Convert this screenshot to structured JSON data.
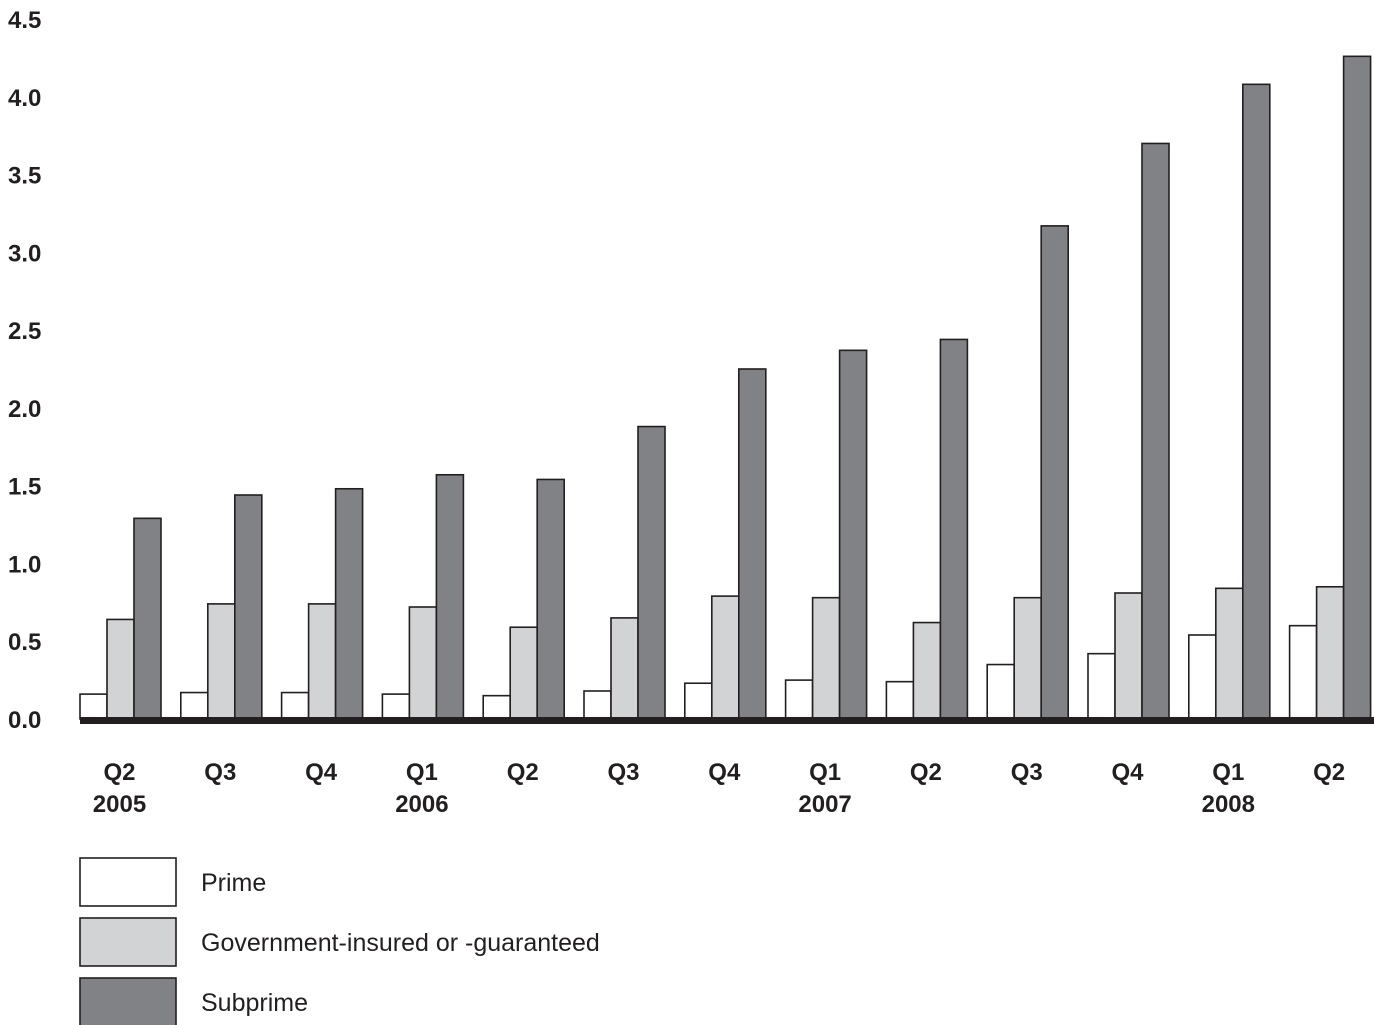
{
  "chart_data": {
    "type": "bar",
    "title": "",
    "xlabel": "",
    "ylabel": "",
    "ylim": [
      0,
      4.5
    ],
    "yticks": [
      "0.0",
      "0.5",
      "1.0",
      "1.5",
      "2.0",
      "2.5",
      "3.0",
      "3.5",
      "4.0",
      "4.5"
    ],
    "grid": false,
    "legend_position": "bottom-left",
    "categories": [
      {
        "quarter": "Q2",
        "year": "2005"
      },
      {
        "quarter": "Q3",
        "year": ""
      },
      {
        "quarter": "Q4",
        "year": ""
      },
      {
        "quarter": "Q1",
        "year": "2006"
      },
      {
        "quarter": "Q2",
        "year": ""
      },
      {
        "quarter": "Q3",
        "year": ""
      },
      {
        "quarter": "Q4",
        "year": ""
      },
      {
        "quarter": "Q1",
        "year": "2007"
      },
      {
        "quarter": "Q2",
        "year": ""
      },
      {
        "quarter": "Q3",
        "year": ""
      },
      {
        "quarter": "Q4",
        "year": ""
      },
      {
        "quarter": "Q1",
        "year": "2008"
      },
      {
        "quarter": "Q2",
        "year": ""
      }
    ],
    "series": [
      {
        "name": "Prime",
        "color": "#ffffff",
        "values": [
          0.16,
          0.17,
          0.17,
          0.16,
          0.15,
          0.18,
          0.23,
          0.25,
          0.24,
          0.35,
          0.42,
          0.54,
          0.6
        ]
      },
      {
        "name": "Government-insured or -guaranteed",
        "color": "#d1d3d4",
        "values": [
          0.64,
          0.74,
          0.74,
          0.72,
          0.59,
          0.65,
          0.79,
          0.78,
          0.62,
          0.78,
          0.81,
          0.84,
          0.85
        ]
      },
      {
        "name": "Subprime",
        "color": "#808285",
        "values": [
          1.29,
          1.44,
          1.48,
          1.57,
          1.54,
          1.88,
          2.25,
          2.37,
          2.44,
          3.17,
          3.7,
          4.08,
          4.26
        ]
      }
    ]
  }
}
